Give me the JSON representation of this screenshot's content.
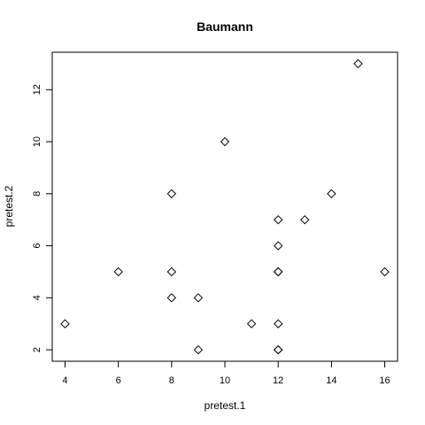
{
  "chart_data": {
    "type": "scatter",
    "title": "Baumann",
    "xlabel": "pretest.1",
    "ylabel": "pretest.2",
    "xlim": [
      3.52,
      16.48
    ],
    "ylim": [
      1.56,
      13.44
    ],
    "xticks": [
      4,
      6,
      8,
      10,
      12,
      14,
      16
    ],
    "yticks": [
      2,
      4,
      6,
      8,
      10,
      12
    ],
    "marker": "diamond",
    "grid": false,
    "points": [
      {
        "x": 4,
        "y": 3
      },
      {
        "x": 6,
        "y": 5
      },
      {
        "x": 8,
        "y": 8
      },
      {
        "x": 8,
        "y": 5
      },
      {
        "x": 8,
        "y": 4
      },
      {
        "x": 9,
        "y": 4
      },
      {
        "x": 9,
        "y": 2
      },
      {
        "x": 10,
        "y": 10
      },
      {
        "x": 11,
        "y": 3
      },
      {
        "x": 12,
        "y": 7
      },
      {
        "x": 12,
        "y": 6
      },
      {
        "x": 12,
        "y": 5
      },
      {
        "x": 12,
        "y": 5
      },
      {
        "x": 12,
        "y": 3
      },
      {
        "x": 12,
        "y": 2
      },
      {
        "x": 12,
        "y": 2
      },
      {
        "x": 13,
        "y": 7
      },
      {
        "x": 14,
        "y": 8
      },
      {
        "x": 15,
        "y": 13
      },
      {
        "x": 16,
        "y": 5
      }
    ]
  }
}
